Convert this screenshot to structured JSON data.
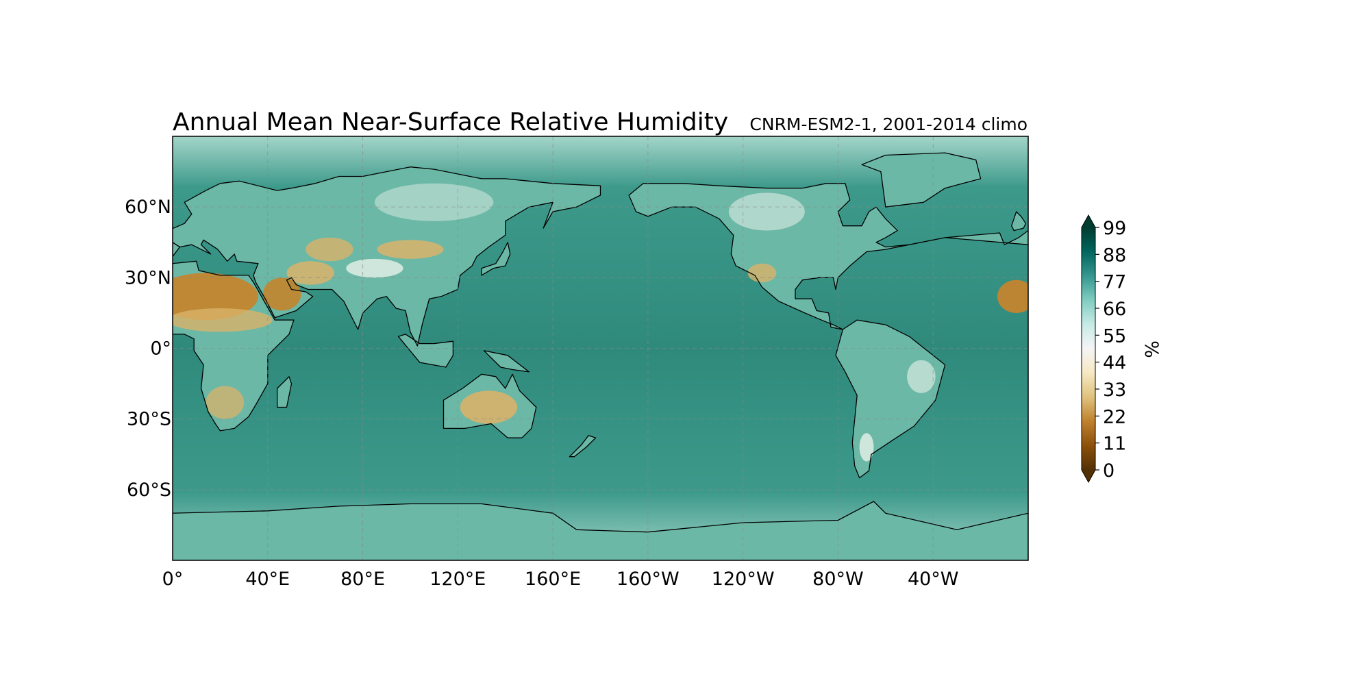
{
  "title": "Annual Mean Near-Surface Relative Humidity",
  "subtitle": "CNRM-ESM2-1, 2001-2014 climo",
  "map": {
    "projection": "PlateCarree",
    "central_longitude": 0,
    "lon_range": [
      0,
      360
    ],
    "lat_range": [
      -90,
      90
    ],
    "gridlines": "dashed",
    "coastlines": true,
    "lon_ticks": [
      0,
      40,
      80,
      120,
      160,
      200,
      240,
      280,
      320
    ],
    "lat_ticks": [
      60,
      30,
      0,
      -30,
      -60
    ],
    "lon_tick_labels": [
      "0°",
      "40°E",
      "80°E",
      "120°E",
      "160°E",
      "160°W",
      "120°W",
      "80°W",
      "40°W"
    ],
    "lat_tick_labels": [
      "60°N",
      "30°N",
      "0°",
      "30°S",
      "60°S"
    ],
    "colors": {
      "ocean": "#3d9a8b",
      "ocean_deep": "#2f8a7c",
      "humid_land": "#6cb8a6",
      "semi_arid": "#e9f1ea",
      "arid": "#d9b36a",
      "very_arid": "#c3852e",
      "polar": "#a4d5c9"
    }
  },
  "colorbar": {
    "label": "%",
    "min": 0,
    "max": 99,
    "extend": "both",
    "ticks": [
      "99",
      "88",
      "77",
      "66",
      "55",
      "44",
      "33",
      "22",
      "11",
      "0"
    ],
    "colormap": "BrBG",
    "stops": [
      "#543005",
      "#8c510a",
      "#bf812d",
      "#dfc27d",
      "#f6e8c3",
      "#f5f5f5",
      "#c7eae5",
      "#80cdc1",
      "#35978f",
      "#01665e",
      "#003c30"
    ]
  }
}
